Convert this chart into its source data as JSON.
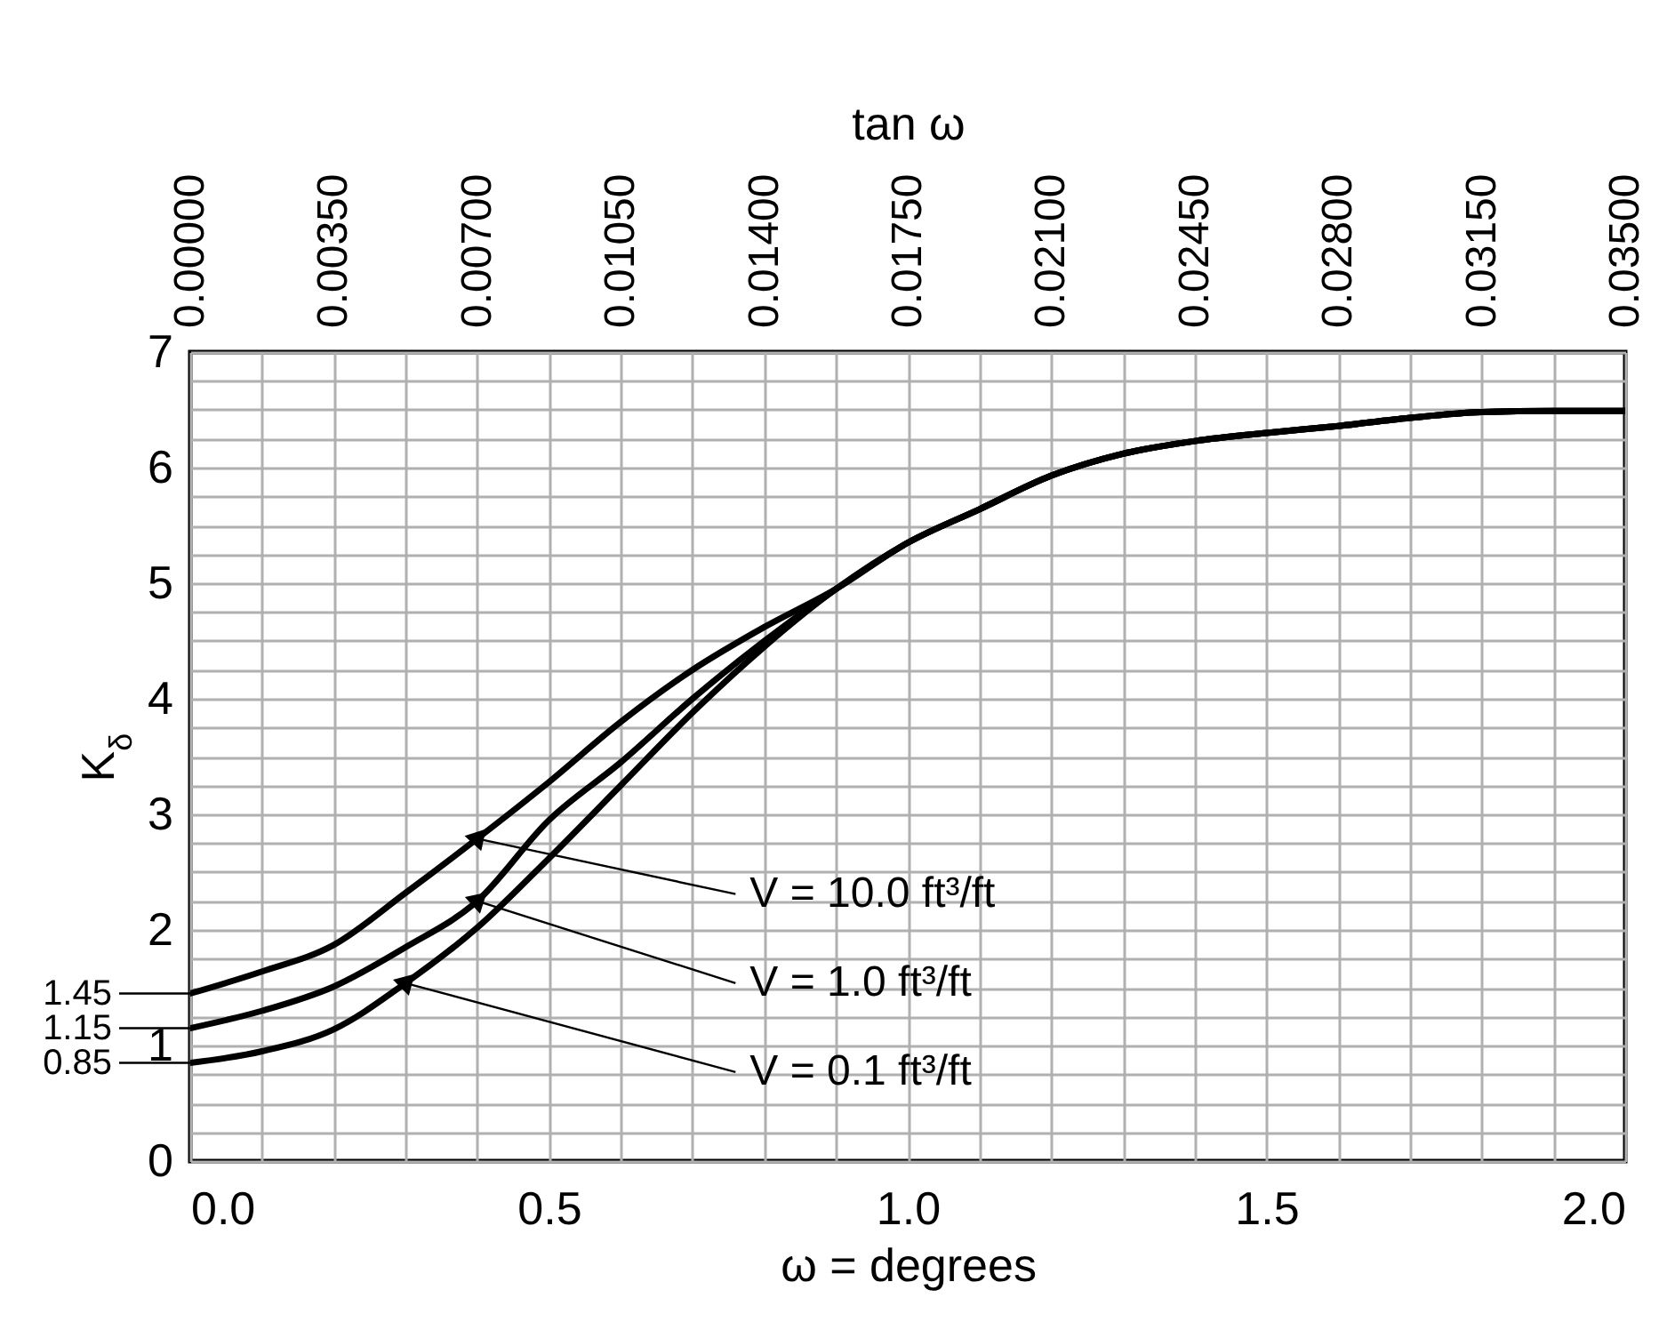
{
  "chart_data": {
    "type": "line",
    "xlabel": "ω = degrees",
    "ylabel": "K$_{δ}$",
    "x2label": "tan ω",
    "xlim": [
      0,
      2
    ],
    "ylim": [
      0,
      7
    ],
    "xticks": [
      {
        "value": 0,
        "label": "0.0"
      },
      {
        "value": 0.1,
        "label": null
      },
      {
        "value": 0.2,
        "label": null
      },
      {
        "value": 0.3,
        "label": null
      },
      {
        "value": 0.4,
        "label": null
      },
      {
        "value": 0.5,
        "label": "0.5"
      },
      {
        "value": 0.6,
        "label": null
      },
      {
        "value": 0.7,
        "label": null
      },
      {
        "value": 0.8,
        "label": null
      },
      {
        "value": 0.9,
        "label": null
      },
      {
        "value": 1,
        "label": "1.0"
      },
      {
        "value": 1.1,
        "label": null
      },
      {
        "value": 1.2,
        "label": null
      },
      {
        "value": 1.3,
        "label": null
      },
      {
        "value": 1.4,
        "label": null
      },
      {
        "value": 1.5,
        "label": "1.5"
      },
      {
        "value": 1.6,
        "label": null
      },
      {
        "value": 1.7,
        "label": null
      },
      {
        "value": 1.8,
        "label": null
      },
      {
        "value": 1.9,
        "label": null
      },
      {
        "value": 2,
        "label": "2.0"
      }
    ],
    "yticks": [
      0,
      {
        "value": 0.25,
        "label": null
      },
      {
        "value": 0.5,
        "label": null
      },
      {
        "value": 0.75,
        "label": null
      },
      1,
      {
        "value": 1.25,
        "label": null
      },
      {
        "value": 1.5,
        "label": null
      },
      {
        "value": 1.75,
        "label": null
      },
      2,
      {
        "value": 2.25,
        "label": null
      },
      {
        "value": 2.5,
        "label": null
      },
      {
        "value": 2.75,
        "label": null
      },
      3,
      {
        "value": 3.25,
        "label": null
      },
      {
        "value": 3.5,
        "label": null
      },
      {
        "value": 3.75,
        "label": null
      },
      4,
      {
        "value": 4.25,
        "label": null
      },
      {
        "value": 4.5,
        "label": null
      },
      {
        "value": 4.75,
        "label": null
      },
      5,
      {
        "value": 5.25,
        "label": null
      },
      {
        "value": 5.5,
        "label": null
      },
      {
        "value": 5.75,
        "label": null
      },
      6,
      {
        "value": 6.25,
        "label": null
      },
      {
        "value": 6.5,
        "label": null
      },
      {
        "value": 6.75,
        "label": null
      },
      7
    ],
    "x2lim": [
      0,
      0.035
    ],
    "x2ticks": [
      {
        "value": 0,
        "label": "0.00000"
      },
      {
        "value": 0.0035,
        "label": "0.00350"
      },
      {
        "value": 0.007,
        "label": "0.00700"
      },
      {
        "value": 0.0105,
        "label": "0.01050"
      },
      {
        "value": 0.014,
        "label": "0.01400"
      },
      {
        "value": 0.0175,
        "label": "0.01750"
      },
      {
        "value": 0.021,
        "label": "0.02100"
      },
      {
        "value": 0.0245,
        "label": "0.02450"
      },
      {
        "value": 0.028,
        "label": "0.02800"
      },
      {
        "value": 0.0315,
        "label": "0.03150"
      },
      {
        "value": 0.035,
        "label": "0.03500"
      }
    ],
    "grid": true,
    "legend": false,
    "marker": "none",
    "line_style": "solid",
    "x": [
      0,
      0.1,
      0.2,
      0.3,
      0.4,
      0.5,
      0.6,
      0.7,
      0.8,
      0.9,
      1.0,
      1.1,
      1.2,
      1.3,
      1.4,
      1.5,
      1.6,
      1.7,
      1.8,
      1.9,
      2.0
    ],
    "series": [
      {
        "name": "V = 10.0 ft³/ft",
        "color": "#000000",
        "values": [
          1.45,
          1.64,
          1.87,
          2.32,
          2.79,
          3.28,
          3.8,
          4.25,
          4.62,
          4.95,
          5.35,
          5.64,
          5.93,
          6.12,
          6.23,
          6.3,
          6.36,
          6.43,
          6.48,
          6.49,
          6.49
        ]
      },
      {
        "name": "V = 1.0 ft³/ft",
        "color": "#000000",
        "values": [
          1.15,
          1.3,
          1.51,
          1.85,
          2.25,
          2.95,
          3.45,
          4.0,
          4.5,
          4.95,
          5.35,
          5.64,
          5.93,
          6.12,
          6.23,
          6.3,
          6.36,
          6.43,
          6.48,
          6.49,
          6.49
        ]
      },
      {
        "name": "V = 0.1 ft³/ft",
        "color": "#000000",
        "values": [
          0.85,
          0.95,
          1.14,
          1.54,
          2.02,
          2.62,
          3.25,
          3.88,
          4.45,
          4.95,
          5.35,
          5.64,
          5.93,
          6.12,
          6.23,
          6.3,
          6.36,
          6.43,
          6.48,
          6.49,
          6.49
        ]
      }
    ],
    "annotations": [
      "1.45",
      "1.15",
      "0.85"
    ]
  }
}
